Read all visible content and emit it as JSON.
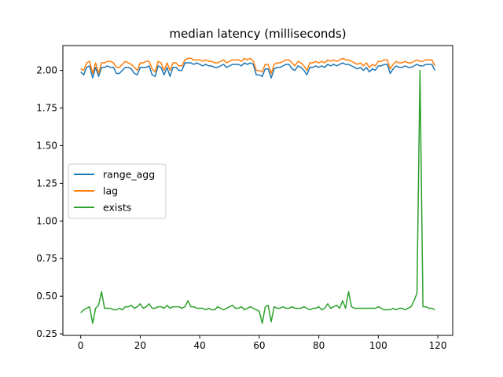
{
  "chart_data": {
    "type": "line",
    "title": "median latency (milliseconds)",
    "xlabel": "",
    "ylabel": "",
    "xlim": [
      -6,
      125
    ],
    "ylim": [
      0.24,
      2.165
    ],
    "xticks": [
      0,
      20,
      40,
      60,
      80,
      100,
      120
    ],
    "yticks": [
      0.25,
      0.5,
      0.75,
      1.0,
      1.25,
      1.5,
      1.75,
      2.0
    ],
    "ytick_labels": [
      "0.25",
      "0.50",
      "0.75",
      "1.00",
      "1.25",
      "1.50",
      "1.75",
      "2.00"
    ],
    "grid": false,
    "legend_position": "center-left",
    "x": [
      0,
      1,
      2,
      3,
      4,
      5,
      6,
      7,
      8,
      9,
      10,
      11,
      12,
      13,
      14,
      15,
      16,
      17,
      18,
      19,
      20,
      21,
      22,
      23,
      24,
      25,
      26,
      27,
      28,
      29,
      30,
      31,
      32,
      33,
      34,
      35,
      36,
      37,
      38,
      39,
      40,
      41,
      42,
      43,
      44,
      45,
      46,
      47,
      48,
      49,
      50,
      51,
      52,
      53,
      54,
      55,
      56,
      57,
      58,
      59,
      60,
      61,
      62,
      63,
      64,
      65,
      66,
      67,
      68,
      69,
      70,
      71,
      72,
      73,
      74,
      75,
      76,
      77,
      78,
      79,
      80,
      81,
      82,
      83,
      84,
      85,
      86,
      87,
      88,
      89,
      90,
      91,
      92,
      93,
      94,
      95,
      96,
      97,
      98,
      99,
      100,
      101,
      102,
      103,
      104,
      105,
      106,
      107,
      108,
      109,
      110,
      111,
      112,
      113,
      114,
      115,
      116,
      117,
      118,
      119
    ],
    "series": [
      {
        "name": "range_agg",
        "color": "#1f77b4",
        "values": [
          1.99,
          1.97,
          2.02,
          2.03,
          1.95,
          2.02,
          1.96,
          2.02,
          2.02,
          2.03,
          2.02,
          2.02,
          1.98,
          1.98,
          2.0,
          2.02,
          2.02,
          2.01,
          1.98,
          1.97,
          2.02,
          2.02,
          2.02,
          2.03,
          1.97,
          1.96,
          2.03,
          2.02,
          1.97,
          2.02,
          1.96,
          2.02,
          2.02,
          2.0,
          2.0,
          2.05,
          2.05,
          2.05,
          2.04,
          2.05,
          2.04,
          2.03,
          2.04,
          2.03,
          2.03,
          2.02,
          2.02,
          2.03,
          2.04,
          2.02,
          2.03,
          2.04,
          2.04,
          2.04,
          2.03,
          2.05,
          2.04,
          2.05,
          2.04,
          1.97,
          1.97,
          1.96,
          2.01,
          2.01,
          1.95,
          2.01,
          2.02,
          2.02,
          2.03,
          2.04,
          2.04,
          2.01,
          2.0,
          2.03,
          2.02,
          2.0,
          1.97,
          2.02,
          2.02,
          2.03,
          2.02,
          2.03,
          2.02,
          2.04,
          2.03,
          2.04,
          2.03,
          2.04,
          2.05,
          2.04,
          2.04,
          2.03,
          2.02,
          2.01,
          2.02,
          2.0,
          2.02,
          1.99,
          2.01,
          2.0,
          2.03,
          2.03,
          2.04,
          2.04,
          1.98,
          2.01,
          2.03,
          2.02,
          2.02,
          2.03,
          2.02,
          2.02,
          2.03,
          2.04,
          2.03,
          2.03,
          2.04,
          2.04,
          2.04,
          2.0
        ]
      },
      {
        "name": "lag",
        "color": "#ff7f0e",
        "values": [
          2.01,
          2.0,
          2.05,
          2.06,
          1.98,
          2.05,
          1.98,
          2.05,
          2.05,
          2.06,
          2.06,
          2.05,
          2.02,
          2.02,
          2.04,
          2.06,
          2.05,
          2.04,
          2.02,
          2.0,
          2.05,
          2.05,
          2.06,
          2.06,
          2.01,
          1.99,
          2.06,
          2.05,
          2.0,
          2.05,
          2.0,
          2.05,
          2.05,
          2.03,
          2.03,
          2.07,
          2.08,
          2.08,
          2.07,
          2.07,
          2.07,
          2.06,
          2.07,
          2.06,
          2.06,
          2.05,
          2.05,
          2.06,
          2.07,
          2.05,
          2.06,
          2.07,
          2.07,
          2.07,
          2.06,
          2.08,
          2.07,
          2.08,
          2.06,
          2.0,
          2.0,
          1.99,
          2.04,
          2.04,
          1.98,
          2.04,
          2.05,
          2.05,
          2.06,
          2.07,
          2.07,
          2.05,
          2.03,
          2.06,
          2.05,
          2.03,
          2.0,
          2.05,
          2.05,
          2.06,
          2.05,
          2.06,
          2.05,
          2.07,
          2.06,
          2.07,
          2.06,
          2.07,
          2.08,
          2.07,
          2.07,
          2.06,
          2.05,
          2.04,
          2.05,
          2.03,
          2.05,
          2.02,
          2.04,
          2.03,
          2.06,
          2.06,
          2.07,
          2.07,
          2.01,
          2.04,
          2.06,
          2.05,
          2.05,
          2.06,
          2.05,
          2.05,
          2.06,
          2.07,
          2.06,
          2.06,
          2.07,
          2.07,
          2.07,
          2.03
        ]
      },
      {
        "name": "exists",
        "color": "#2ca02c",
        "values": [
          0.39,
          0.41,
          0.42,
          0.43,
          0.32,
          0.42,
          0.44,
          0.53,
          0.42,
          0.42,
          0.42,
          0.41,
          0.41,
          0.42,
          0.41,
          0.43,
          0.43,
          0.44,
          0.42,
          0.43,
          0.45,
          0.42,
          0.43,
          0.45,
          0.42,
          0.42,
          0.43,
          0.43,
          0.42,
          0.44,
          0.42,
          0.43,
          0.43,
          0.43,
          0.42,
          0.43,
          0.47,
          0.43,
          0.43,
          0.42,
          0.42,
          0.42,
          0.41,
          0.42,
          0.41,
          0.41,
          0.43,
          0.42,
          0.41,
          0.42,
          0.43,
          0.44,
          0.42,
          0.42,
          0.43,
          0.41,
          0.42,
          0.43,
          0.42,
          0.41,
          0.4,
          0.32,
          0.43,
          0.44,
          0.33,
          0.43,
          0.42,
          0.42,
          0.43,
          0.42,
          0.42,
          0.43,
          0.42,
          0.42,
          0.42,
          0.43,
          0.42,
          0.41,
          0.42,
          0.42,
          0.43,
          0.41,
          0.42,
          0.45,
          0.42,
          0.43,
          0.44,
          0.42,
          0.47,
          0.42,
          0.53,
          0.43,
          0.42,
          0.42,
          0.42,
          0.42,
          0.42,
          0.42,
          0.42,
          0.42,
          0.43,
          0.42,
          0.41,
          0.41,
          0.41,
          0.42,
          0.41,
          0.42,
          0.42,
          0.41,
          0.42,
          0.43,
          0.47,
          0.52,
          2.0,
          0.43,
          0.43,
          0.42,
          0.42,
          0.41
        ]
      }
    ]
  }
}
